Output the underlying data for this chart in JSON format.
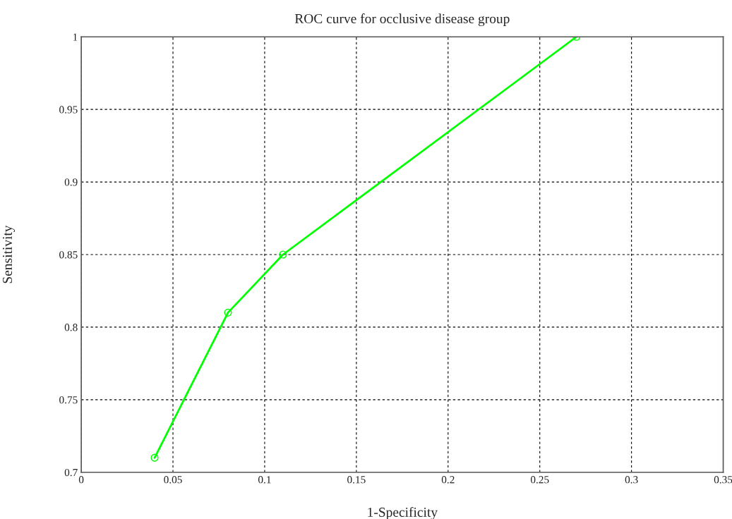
{
  "chart_data": {
    "type": "line",
    "title": "ROC curve for occlusive disease group",
    "xlabel": "1-Specificity",
    "ylabel": "Sensitivity",
    "x": [
      0.04,
      0.08,
      0.11,
      0.27
    ],
    "series": [
      {
        "color": "#00ff00",
        "values": [
          0.71,
          0.81,
          0.85,
          1.0
        ]
      }
    ],
    "marker": "circle",
    "line_style": "solid",
    "xlim": [
      0,
      0.35
    ],
    "xticks": [
      0,
      0.05,
      0.1,
      0.15,
      0.2,
      0.25,
      0.3,
      0.35
    ],
    "ylim": [
      0.7,
      1
    ],
    "yticks": [
      0.7,
      0.75,
      0.8,
      0.85,
      0.9,
      0.95,
      1
    ],
    "grid": true,
    "legend": false
  }
}
